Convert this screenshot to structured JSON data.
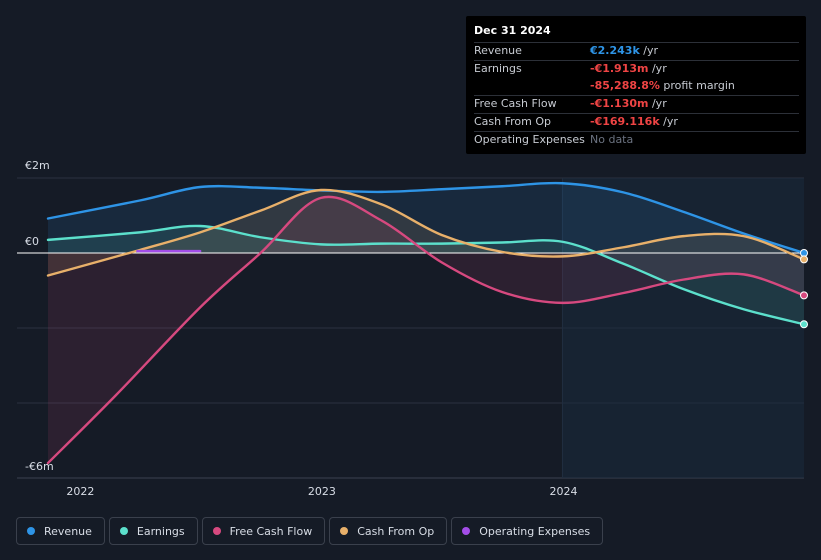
{
  "tooltip": {
    "date": "Dec 31 2024",
    "rows": {
      "revenue": {
        "label": "Revenue",
        "value": "€2.243k",
        "unit": " /yr"
      },
      "earnings": {
        "label": "Earnings",
        "value": "-€1.913m",
        "unit": " /yr"
      },
      "margin": {
        "label": "",
        "value": "-85,288.8%",
        "unit": " profit margin"
      },
      "fcf": {
        "label": "Free Cash Flow",
        "value": "-€1.130m",
        "unit": " /yr"
      },
      "cfo": {
        "label": "Cash From Op",
        "value": "-€169.116k",
        "unit": " /yr"
      },
      "opex": {
        "label": "Operating Expenses",
        "value": "No data"
      }
    }
  },
  "legend": [
    {
      "label": "Revenue",
      "color": "#2e94e6"
    },
    {
      "label": "Earnings",
      "color": "#5ce0cc"
    },
    {
      "label": "Free Cash Flow",
      "color": "#d6497f"
    },
    {
      "label": "Cash From Op",
      "color": "#e8b06a"
    },
    {
      "label": "Operating Expenses",
      "color": "#a34de8"
    }
  ],
  "chart_data": {
    "type": "line",
    "currency": "€",
    "ylim": [
      -6,
      2
    ],
    "y_ticks": [
      {
        "value": 2,
        "label": "€2m"
      },
      {
        "value": 0,
        "label": "€0"
      },
      {
        "value": -6,
        "label": "-€6m"
      }
    ],
    "x_ticks": [
      {
        "value": 2022.0,
        "label": "2022"
      },
      {
        "value": 2023.0,
        "label": "2023"
      },
      {
        "value": 2024.0,
        "label": "2024"
      }
    ],
    "xlim": [
      2021.87,
      2025.0
    ],
    "highlight_start": 2024.0,
    "series": [
      {
        "name": "Revenue",
        "color": "#2e94e6",
        "fill": true,
        "points": [
          [
            2021.87,
            0.92
          ],
          [
            2022.25,
            1.4
          ],
          [
            2022.5,
            1.76
          ],
          [
            2022.75,
            1.74
          ],
          [
            2023.0,
            1.67
          ],
          [
            2023.25,
            1.63
          ],
          [
            2023.5,
            1.7
          ],
          [
            2023.75,
            1.78
          ],
          [
            2024.0,
            1.86
          ],
          [
            2024.25,
            1.62
          ],
          [
            2024.5,
            1.1
          ],
          [
            2024.75,
            0.52
          ],
          [
            2025.0,
            0.0
          ]
        ]
      },
      {
        "name": "Earnings",
        "color": "#5ce0cc",
        "fill": true,
        "points": [
          [
            2021.87,
            0.35
          ],
          [
            2022.25,
            0.55
          ],
          [
            2022.5,
            0.72
          ],
          [
            2022.75,
            0.42
          ],
          [
            2023.0,
            0.23
          ],
          [
            2023.25,
            0.25
          ],
          [
            2023.5,
            0.25
          ],
          [
            2023.75,
            0.28
          ],
          [
            2024.0,
            0.3
          ],
          [
            2024.25,
            -0.28
          ],
          [
            2024.5,
            -0.96
          ],
          [
            2024.75,
            -1.5
          ],
          [
            2025.0,
            -1.9
          ]
        ]
      },
      {
        "name": "Free Cash Flow",
        "color": "#d6497f",
        "fill": true,
        "points": [
          [
            2021.87,
            -5.6
          ],
          [
            2022.15,
            -3.8
          ],
          [
            2022.5,
            -1.45
          ],
          [
            2022.75,
            0.0
          ],
          [
            2023.0,
            1.47
          ],
          [
            2023.25,
            0.87
          ],
          [
            2023.5,
            -0.25
          ],
          [
            2023.75,
            -1.04
          ],
          [
            2024.0,
            -1.33
          ],
          [
            2024.25,
            -1.07
          ],
          [
            2024.5,
            -0.71
          ],
          [
            2024.75,
            -0.57
          ],
          [
            2025.0,
            -1.13
          ]
        ]
      },
      {
        "name": "Cash From Op",
        "color": "#e8b06a",
        "fill": true,
        "points": [
          [
            2021.87,
            -0.6
          ],
          [
            2022.25,
            0.08
          ],
          [
            2022.5,
            0.55
          ],
          [
            2022.75,
            1.13
          ],
          [
            2023.0,
            1.68
          ],
          [
            2023.25,
            1.3
          ],
          [
            2023.5,
            0.48
          ],
          [
            2023.75,
            0.03
          ],
          [
            2024.0,
            -0.09
          ],
          [
            2024.25,
            0.15
          ],
          [
            2024.5,
            0.45
          ],
          [
            2024.75,
            0.45
          ],
          [
            2025.0,
            -0.17
          ]
        ]
      },
      {
        "name": "Operating Expenses",
        "color": "#a34de8",
        "fill": false,
        "points": [
          [
            2022.24,
            0.05
          ],
          [
            2022.5,
            0.05
          ]
        ]
      }
    ]
  }
}
